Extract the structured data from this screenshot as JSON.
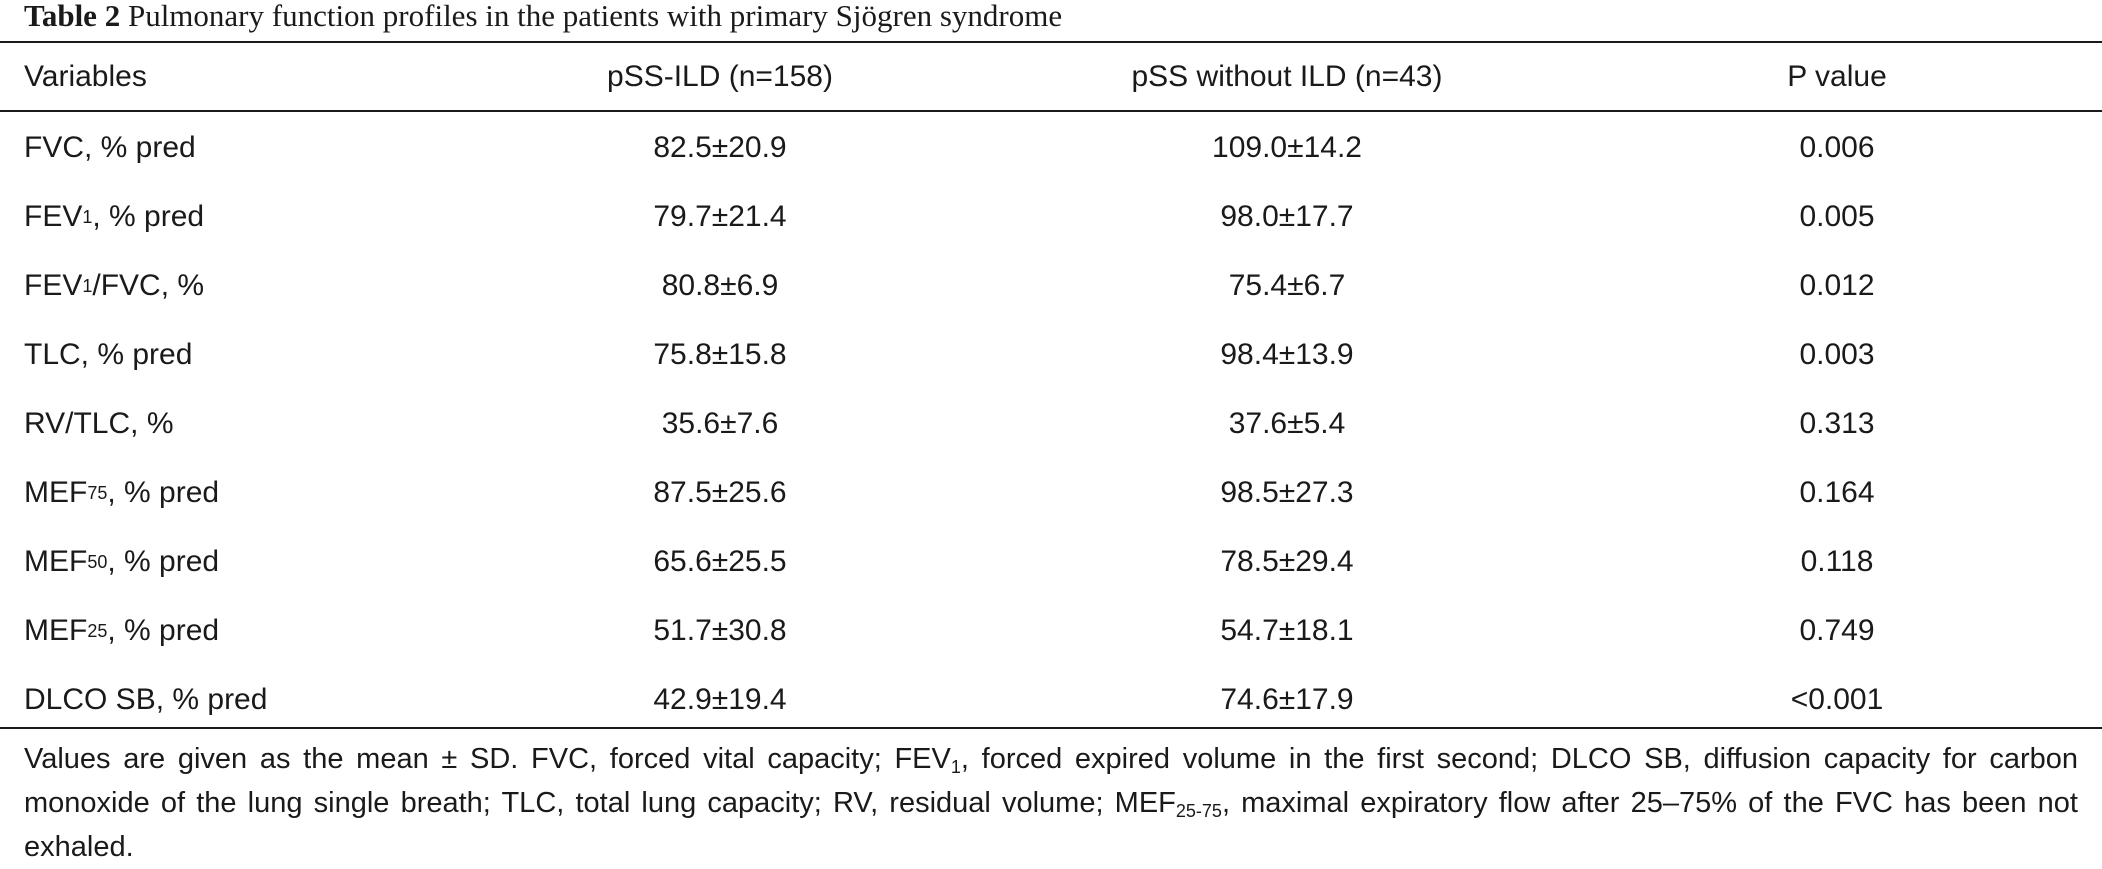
{
  "caption": {
    "label": "Table 2",
    "title": "Pulmonary function profiles in the patients with primary Sjögren syndrome"
  },
  "table": {
    "headers": [
      "Variables",
      "pSS-ILD (n=158)",
      "pSS without ILD (n=43)",
      "P value"
    ],
    "rows": [
      {
        "var_main": "FVC, % pred",
        "var_sub": "",
        "var_tail": "",
        "ild": "82.5±20.9",
        "no_ild": "109.0±14.2",
        "p": "0.006"
      },
      {
        "var_main": "FEV",
        "var_sub": "1",
        "var_tail": ", % pred",
        "ild": "79.7±21.4",
        "no_ild": "98.0±17.7",
        "p": "0.005"
      },
      {
        "var_main": "FEV",
        "var_sub": "1",
        "var_tail": "/FVC, %",
        "ild": "80.8±6.9",
        "no_ild": "75.4±6.7",
        "p": "0.012"
      },
      {
        "var_main": "TLC, % pred",
        "var_sub": "",
        "var_tail": "",
        "ild": "75.8±15.8",
        "no_ild": "98.4±13.9",
        "p": "0.003"
      },
      {
        "var_main": "RV/TLC, %",
        "var_sub": "",
        "var_tail": "",
        "ild": "35.6±7.6",
        "no_ild": "37.6±5.4",
        "p": "0.313"
      },
      {
        "var_main": "MEF",
        "var_sub": "75",
        "var_tail": ", % pred",
        "ild": "87.5±25.6",
        "no_ild": "98.5±27.3",
        "p": "0.164"
      },
      {
        "var_main": "MEF",
        "var_sub": "50",
        "var_tail": ", % pred",
        "ild": "65.6±25.5",
        "no_ild": "78.5±29.4",
        "p": "0.118"
      },
      {
        "var_main": "MEF",
        "var_sub": "25",
        "var_tail": ", % pred",
        "ild": "51.7±30.8",
        "no_ild": "54.7±18.1",
        "p": "0.749"
      },
      {
        "var_main": "DLCO SB, % pred",
        "var_sub": "",
        "var_tail": "",
        "ild": "42.9±19.4",
        "no_ild": "74.6±17.9",
        "p": "<0.001"
      }
    ]
  },
  "footnote": {
    "part1": "Values are given as the mean ± SD. FVC, forced vital capacity; FEV",
    "sub1": "1",
    "part2": ", forced expired volume in the first second; DLCO SB, diffusion capacity for carbon monoxide of the lung single breath; TLC, total lung capacity; RV, residual volume; MEF",
    "sub2": "25-75",
    "part3": ", maximal expiratory flow after 25–75% of the FVC has been not exhaled."
  }
}
